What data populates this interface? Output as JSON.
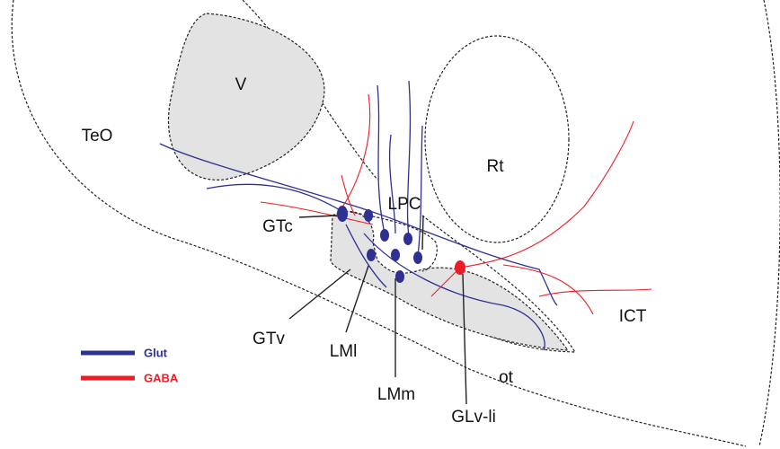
{
  "regions": [
    "V",
    "TeO",
    "Rt",
    "LPC",
    "GTc",
    "GTv",
    "LMl",
    "LMm",
    "GLv-li",
    "ot",
    "ICT"
  ],
  "legend": [
    {
      "label": "Glut",
      "color": "#2e3192"
    },
    {
      "label": "GABA",
      "color": "#ed1c24"
    }
  ]
}
